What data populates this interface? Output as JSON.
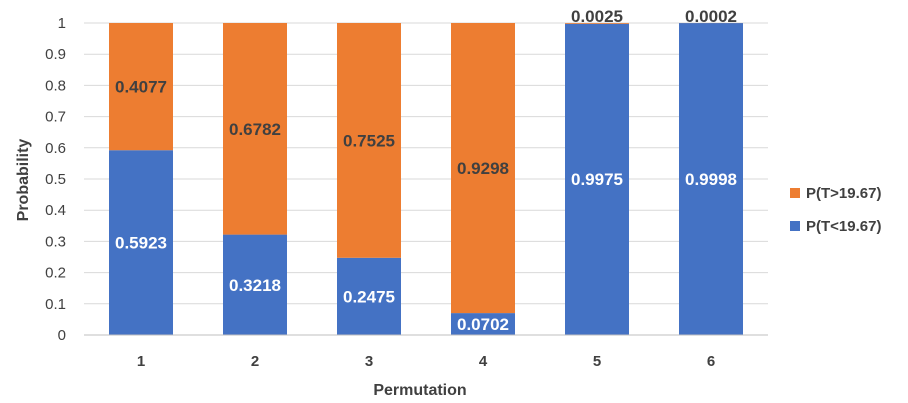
{
  "chart_data": {
    "type": "bar",
    "stacked": true,
    "categories": [
      "1",
      "2",
      "3",
      "4",
      "5",
      "6"
    ],
    "series": [
      {
        "name": "P(T<19.67)",
        "values": [
          0.5923,
          0.3218,
          0.2475,
          0.0702,
          0.9975,
          0.9998
        ],
        "color": "#4472C4"
      },
      {
        "name": "P(T>19.67)",
        "values": [
          0.4077,
          0.6782,
          0.7525,
          0.9298,
          0.0025,
          0.0002
        ],
        "color": "#ED7D31"
      }
    ],
    "data_labels": {
      "P(T<19.67)": [
        "0.5923",
        "0.3218",
        "0.2475",
        "0.0702",
        "0.9975",
        "0.9998"
      ],
      "P(T>19.67)": [
        "0.4077",
        "0.6782",
        "0.7525",
        "0.9298",
        "0.0025",
        "0.0002"
      ]
    },
    "yticks": [
      "0",
      "0.1",
      "0.2",
      "0.3",
      "0.4",
      "0.5",
      "0.6",
      "0.7",
      "0.8",
      "0.9",
      "1"
    ],
    "title": "",
    "xlabel": "Permutation",
    "ylabel": "Probability",
    "ylim": [
      0,
      1
    ],
    "grid": true,
    "legend_position": "right",
    "legend": [
      "P(T>19.67)",
      "P(T<19.67)"
    ]
  }
}
